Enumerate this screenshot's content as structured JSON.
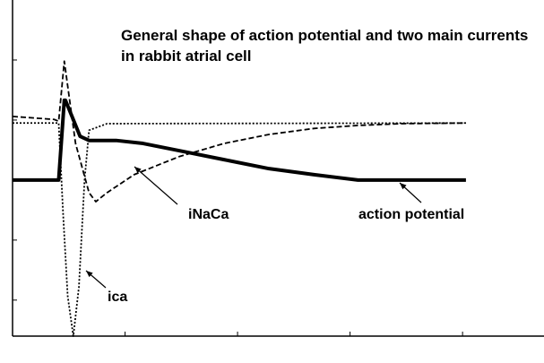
{
  "chart_data": {
    "type": "line",
    "title": "General shape of action potential and two main currents in rabbit atrial cell",
    "annotations": [
      "iNaCa",
      "action potential",
      "ica"
    ],
    "xlim": [
      0,
      4.7
    ],
    "ylim": [
      -2.6,
      3
    ],
    "xticks": [
      1,
      2,
      3,
      4
    ],
    "yticks": [
      -2,
      -1,
      0,
      1,
      2
    ],
    "series": [
      {
        "name": "action potential",
        "color": "#000000",
        "style": "solid",
        "x": [
          0,
          0.41,
          0.46,
          0.47,
          0.6,
          0.68,
          0.92,
          1.16,
          1.48,
          1.88,
          2.28,
          2.68,
          3.07,
          3.47,
          4.03
        ],
        "values": [
          0,
          0,
          1.33,
          1.33,
          0.73,
          0.66,
          0.66,
          0.61,
          0.49,
          0.34,
          0.19,
          0.09,
          0,
          0,
          0
        ]
      },
      {
        "name": "iNaCa",
        "color": "#000000",
        "style": "dashed",
        "x": [
          0,
          0.37,
          0.41,
          0.46,
          0.56,
          0.68,
          0.74,
          0.84,
          1.08,
          1.48,
          1.88,
          2.28,
          2.68,
          3.07,
          3.47,
          4.03
        ],
        "values": [
          1.06,
          1.01,
          0.98,
          1.98,
          0.61,
          -0.21,
          -0.36,
          -0.21,
          0.09,
          0.39,
          0.61,
          0.76,
          0.86,
          0.91,
          0.94,
          0.95
        ]
      },
      {
        "name": "ica",
        "color": "#000000",
        "style": "dotted",
        "x": [
          0,
          0.41,
          0.45,
          0.49,
          0.54,
          0.59,
          0.64,
          0.68,
          0.84,
          4.03
        ],
        "values": [
          0.95,
          0.95,
          -0.58,
          -1.93,
          -2.6,
          -1.78,
          0,
          0.83,
          0.94,
          0.95
        ]
      }
    ]
  }
}
